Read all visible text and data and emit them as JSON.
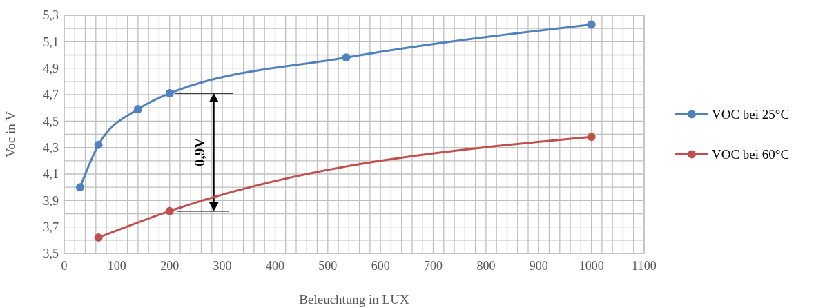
{
  "chart_data": {
    "type": "line",
    "xlabel": "Beleuchtung in LUX",
    "ylabel": "Voc in V",
    "xlim": [
      0,
      1100
    ],
    "xticks": [
      0,
      100,
      200,
      300,
      400,
      500,
      600,
      700,
      800,
      900,
      1000,
      1100
    ],
    "ylim": [
      3.5,
      5.3
    ],
    "yticks": [
      {
        "value": 3.5,
        "label": "3,5"
      },
      {
        "value": 3.7,
        "label": "3,7"
      },
      {
        "value": 3.9,
        "label": "3,9"
      },
      {
        "value": 4.1,
        "label": "4,1"
      },
      {
        "value": 4.3,
        "label": "4,3"
      },
      {
        "value": 4.5,
        "label": "4,5"
      },
      {
        "value": 4.7,
        "label": "4,7"
      },
      {
        "value": 4.9,
        "label": "4,9"
      },
      {
        "value": 5.1,
        "label": "5,1"
      },
      {
        "value": 5.3,
        "label": "5,3"
      }
    ],
    "grid": true,
    "legend": "right",
    "marker": "circle",
    "line_style": "solid",
    "series": [
      {
        "name": "VOC bei 25°C",
        "color": "#4f81bd",
        "x": [
          30,
          65,
          140,
          200,
          535,
          1000
        ],
        "values": [
          4.0,
          4.32,
          4.59,
          4.71,
          4.98,
          5.23
        ]
      },
      {
        "name": "VOC bei 60°C",
        "color": "#c0504d",
        "x": [
          65,
          200,
          1000
        ],
        "values": [
          3.62,
          3.82,
          4.38
        ]
      }
    ],
    "annotations": [
      "0,9V"
    ]
  }
}
